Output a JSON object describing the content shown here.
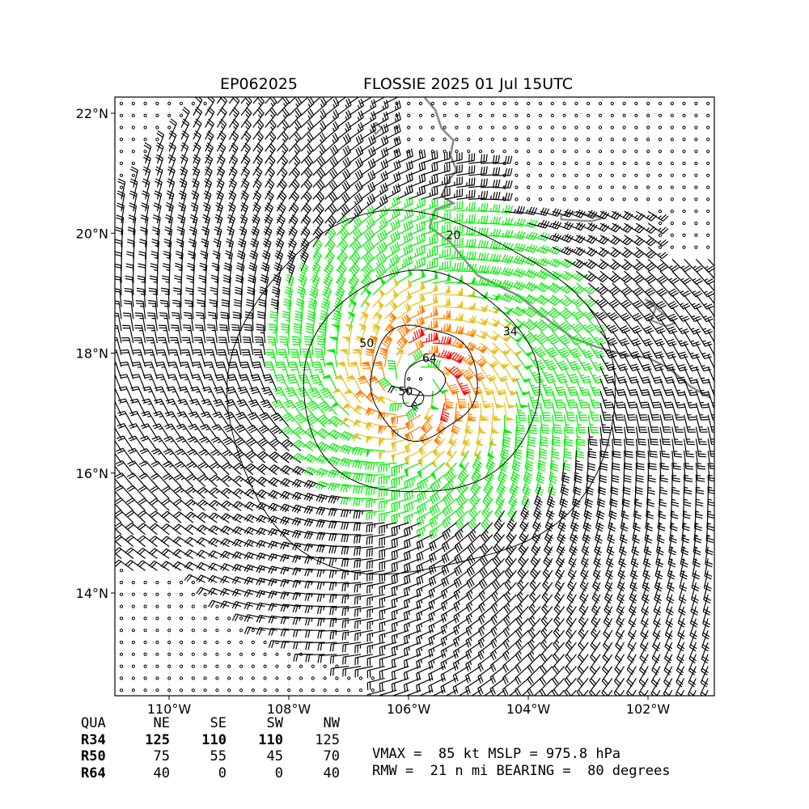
{
  "title": {
    "storm_id": "EP062025",
    "storm_info": "FLOSSIE 2025 01 Jul 15UTC"
  },
  "map": {
    "lon_range": [
      -111.0,
      -101.0
    ],
    "lat_range": [
      12.3,
      22.3
    ],
    "lon_ticks": [
      {
        "value": -110,
        "label": "110°W"
      },
      {
        "value": -108,
        "label": "108°W"
      },
      {
        "value": -106,
        "label": "106°W"
      },
      {
        "value": -104,
        "label": "104°W"
      },
      {
        "value": -102,
        "label": "102°W"
      }
    ],
    "lat_ticks": [
      {
        "value": 14,
        "label": "14°N"
      },
      {
        "value": 16,
        "label": "16°N"
      },
      {
        "value": 18,
        "label": "18°N"
      },
      {
        "value": 20,
        "label": "20°N"
      },
      {
        "value": 22,
        "label": "22°N"
      }
    ],
    "grid": true,
    "storm_center": {
      "lon": -105.9,
      "lat": 17.5
    },
    "contour_labels": [
      {
        "text": "20",
        "lon": -105.25,
        "lat": 19.9
      },
      {
        "text": "34",
        "lon": -104.3,
        "lat": 18.3
      },
      {
        "text": "50",
        "lon": -106.7,
        "lat": 18.1
      },
      {
        "text": "64",
        "lon": -105.65,
        "lat": 17.85
      },
      {
        "text": "50",
        "lon": -106.05,
        "lat": 17.3
      }
    ],
    "wind_colors": {
      "below_34": "#000000",
      "34_to_50": "#00ee00",
      "50_to_64": "#e8c020",
      "64_to_83": "#ff7f00",
      "above_83": "#ff0000"
    },
    "coastline_color": "#888888"
  },
  "chart_data": {
    "type": "wind_radii_map",
    "title": "EP062025 FLOSSIE 2025 01 Jul 15UTC",
    "wind_radii_nm": {
      "columns": [
        "QUA",
        "NE",
        "SE",
        "SW",
        "NW"
      ],
      "rows": [
        {
          "label": "R34",
          "values": [
            "125",
            "110",
            "110",
            "125"
          ]
        },
        {
          "label": "R50",
          "values": [
            "75",
            "55",
            "45",
            "70"
          ]
        },
        {
          "label": "R64",
          "values": [
            "40",
            "0",
            "0",
            "40"
          ]
        }
      ]
    },
    "vmax_kt": 85,
    "mslp_hpa": 975.8,
    "rmw_nmi": 21,
    "bearing_deg": 80,
    "contour_levels": [
      20,
      34,
      50,
      64
    ]
  },
  "table": {
    "header": [
      "QUA",
      "NE",
      "SE",
      "SW",
      "NW"
    ],
    "rows": [
      {
        "label": "R34",
        "values": [
          "125",
          "110",
          "110",
          "125"
        ]
      },
      {
        "label": "R50",
        "values": [
          "75",
          "55",
          "45",
          "70"
        ]
      },
      {
        "label": "R64",
        "values": [
          "40",
          "0",
          "0",
          "40"
        ]
      }
    ]
  },
  "summary": {
    "line1": "VMAX =  85 kt MSLP = 975.8 hPa",
    "line2": "RMW =  21 n mi BEARING =  80 degrees"
  }
}
